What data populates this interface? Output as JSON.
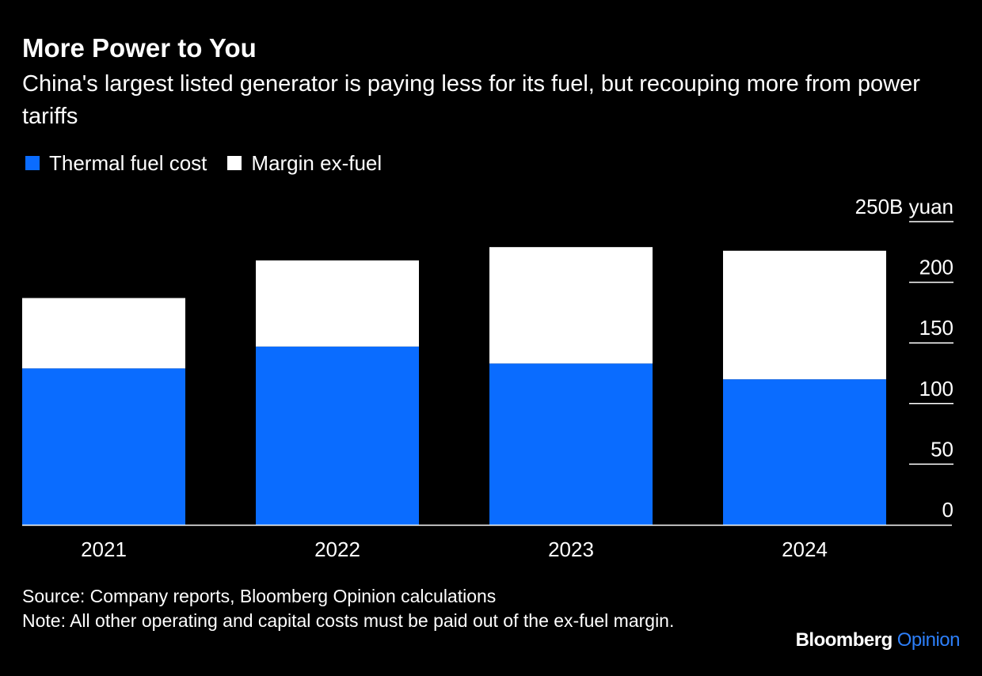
{
  "title": "More Power to You",
  "subtitle": "China's largest listed generator is paying less for its fuel, but recouping more from power tariffs",
  "footer": {
    "source": "Source: Company reports, Bloomberg Opinion calculations",
    "note": "Note: All other operating and capital costs must be paid out of the ex-fuel margin."
  },
  "brand": {
    "name": "Bloomberg",
    "suffix": "Opinion",
    "suffix_color": "#2d7ff9"
  },
  "colors": {
    "background": "#000000",
    "fuel": "#0a6cff",
    "margin": "#ffffff",
    "text": "#ffffff"
  },
  "chart_data": {
    "type": "bar",
    "stacked": true,
    "categories": [
      "2021",
      "2022",
      "2023",
      "2024"
    ],
    "series": [
      {
        "name": "Thermal fuel cost",
        "color": "#0a6cff",
        "values": [
          129,
          147,
          133,
          120
        ]
      },
      {
        "name": "Margin ex-fuel",
        "color": "#ffffff",
        "values": [
          58,
          71,
          96,
          106
        ]
      }
    ],
    "ylabel": "",
    "y_unit_label": "250B yuan",
    "yticks": [
      0,
      50,
      100,
      150,
      200,
      250
    ],
    "ylim": [
      0,
      250
    ],
    "y_axis_side": "right",
    "legend_position": "top-left",
    "grid": false
  }
}
